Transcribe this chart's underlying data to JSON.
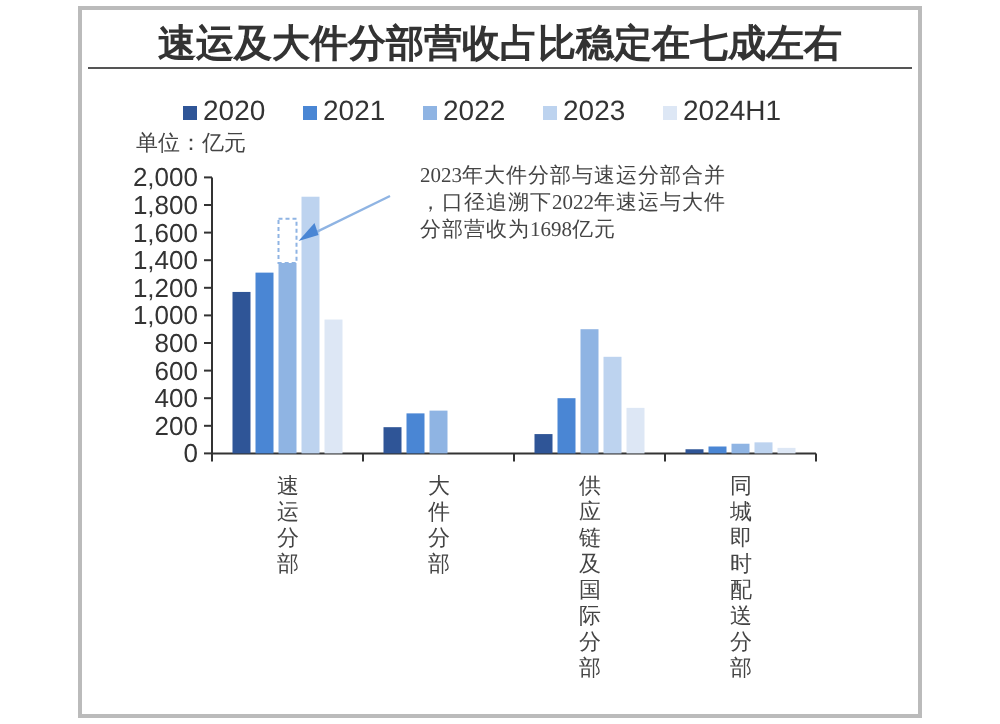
{
  "chart_data": {
    "type": "bar",
    "title": "速运及大件分部营收占比稳定在七成左右",
    "ylabel": "单位：亿元",
    "categories": [
      "速运分部",
      "大件分部",
      "供应链及国际分部",
      "同城即时配送分部"
    ],
    "series": [
      {
        "name": "2020",
        "color": "#2f5597",
        "values": [
          1170,
          190,
          140,
          30
        ]
      },
      {
        "name": "2021",
        "color": "#4a86d4",
        "values": [
          1310,
          290,
          400,
          50
        ]
      },
      {
        "name": "2022",
        "color": "#8fb4e3",
        "values": [
          1380,
          310,
          900,
          70
        ]
      },
      {
        "color": "#ffffff",
        "base": [
          1380,
          null,
          null,
          null
        ],
        "values": [
          320,
          null,
          null,
          null
        ],
        "line_style": "dashed"
      },
      {
        "name": "2023",
        "color": "#bdd3ef",
        "values": [
          1860,
          null,
          700,
          80
        ]
      },
      {
        "name": "2024H1",
        "color": "#dde7f5",
        "values": [
          970,
          null,
          330,
          40
        ]
      }
    ],
    "ylim": [
      0,
      2000
    ],
    "yticks": [
      {
        "value": 0,
        "label": "0"
      },
      {
        "value": 200,
        "label": "200"
      },
      {
        "value": 400,
        "label": "400"
      },
      {
        "value": 600,
        "label": "600"
      },
      {
        "value": 800,
        "label": "800"
      },
      {
        "value": 1000,
        "label": "1,000"
      },
      {
        "value": 1200,
        "label": "1,200"
      },
      {
        "value": 1400,
        "label": "1,400"
      },
      {
        "value": 1600,
        "label": "1,600"
      },
      {
        "value": 1800,
        "label": "1,800"
      },
      {
        "value": 2000,
        "label": "2,000"
      }
    ],
    "grid": false,
    "legend": "top",
    "annotations": [
      "2023年大件分部与速运分部合并，口径追溯下2022年速运与大件分部营收为1698亿元"
    ]
  }
}
